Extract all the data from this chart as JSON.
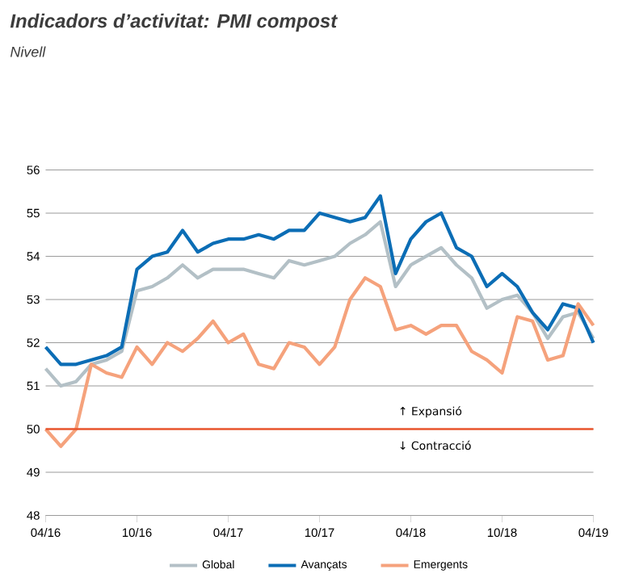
{
  "chart_data": {
    "type": "line",
    "title": "Indicadors d’activitat: PMI compost",
    "subtitle": "Nivell",
    "x": [
      "2016-04",
      "2016-05",
      "2016-06",
      "2016-07",
      "2016-08",
      "2016-09",
      "2016-10",
      "2016-11",
      "2016-12",
      "2017-01",
      "2017-02",
      "2017-03",
      "2017-04",
      "2017-05",
      "2017-06",
      "2017-07",
      "2017-08",
      "2017-09",
      "2017-10",
      "2017-11",
      "2017-12",
      "2018-01",
      "2018-02",
      "2018-03",
      "2018-04",
      "2018-05",
      "2018-06",
      "2018-07",
      "2018-08",
      "2018-09",
      "2018-10",
      "2018-11",
      "2018-12",
      "2019-01",
      "2019-02",
      "2019-03",
      "2019-04"
    ],
    "series": [
      {
        "name": "Global",
        "color": "#b3c0c6",
        "values": [
          51.4,
          51.0,
          51.1,
          51.5,
          51.6,
          51.8,
          53.2,
          53.3,
          53.5,
          53.8,
          53.5,
          53.7,
          53.7,
          53.7,
          53.6,
          53.5,
          53.9,
          53.8,
          53.9,
          54.0,
          54.3,
          54.5,
          54.8,
          53.3,
          53.8,
          54.0,
          54.2,
          53.8,
          53.5,
          52.8,
          53.0,
          53.1,
          52.7,
          52.1,
          52.6,
          52.7,
          52.1
        ]
      },
      {
        "name": "Avançats",
        "color": "#0b6db5",
        "values": [
          51.9,
          51.5,
          51.5,
          51.6,
          51.7,
          51.9,
          53.7,
          54.0,
          54.1,
          54.6,
          54.1,
          54.3,
          54.4,
          54.4,
          54.5,
          54.4,
          54.6,
          54.6,
          55.0,
          54.9,
          54.8,
          54.9,
          55.4,
          53.6,
          54.4,
          54.8,
          55.0,
          54.2,
          54.0,
          53.3,
          53.6,
          53.3,
          52.7,
          52.3,
          52.9,
          52.8,
          52.0
        ]
      },
      {
        "name": "Emergents",
        "color": "#f5a27c",
        "values": [
          50.0,
          49.6,
          50.0,
          51.5,
          51.3,
          51.2,
          51.9,
          51.5,
          52.0,
          51.8,
          52.1,
          52.5,
          52.0,
          52.2,
          51.5,
          51.4,
          52.0,
          51.9,
          51.5,
          51.9,
          53.0,
          53.5,
          53.3,
          52.3,
          52.4,
          52.2,
          52.4,
          52.4,
          51.8,
          51.6,
          51.3,
          52.6,
          52.5,
          51.6,
          51.7,
          52.9,
          52.4
        ]
      }
    ],
    "xlim": [
      "2016-04",
      "2019-04"
    ],
    "xticks": [
      {
        "value": "2016-04",
        "label": "04/16"
      },
      {
        "value": "2016-10",
        "label": "10/16"
      },
      {
        "value": "2017-04",
        "label": "04/17"
      },
      {
        "value": "2017-10",
        "label": "10/17"
      },
      {
        "value": "2018-04",
        "label": "04/18"
      },
      {
        "value": "2018-10",
        "label": "10/18"
      },
      {
        "value": "2019-04",
        "label": "04/19"
      }
    ],
    "ylim": [
      48,
      56
    ],
    "yticks": [
      48,
      49,
      50,
      51,
      52,
      53,
      54,
      55,
      56
    ],
    "ref_lines": [
      {
        "axis": "y",
        "value": 50,
        "color": "#e8542c"
      }
    ],
    "annotations": [
      "↑ Expansió",
      "↓ Contracció"
    ],
    "grid": "y",
    "legend": "bottom",
    "marker": "none",
    "line_style": "solid"
  }
}
